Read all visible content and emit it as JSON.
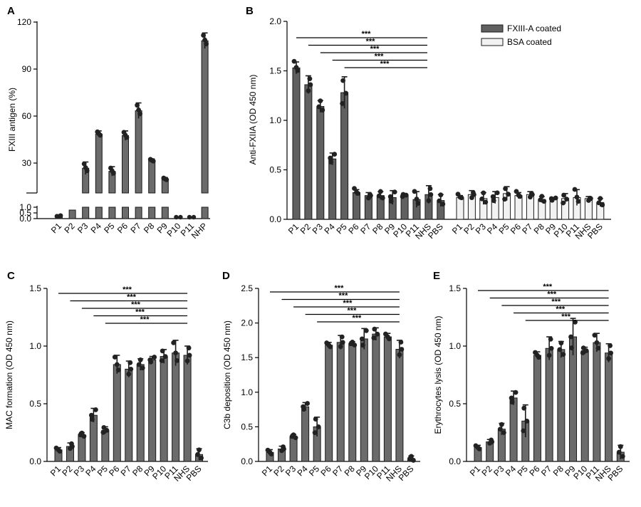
{
  "colors": {
    "fxiii": "#606060",
    "bsa": "#f2f2f2",
    "bar": "#6b6b6b",
    "edge": "#1a1a1a",
    "dot": "#222222"
  },
  "chart_data": [
    {
      "panel": "A",
      "type": "bar",
      "ylabel": "FXIII antigen (%)",
      "ylim": [
        0,
        120
      ],
      "broken_axis": true,
      "yticks": [
        "0.0",
        "0.5",
        "1.0",
        "30",
        "60",
        "90",
        "120"
      ],
      "categories": [
        "P1",
        "P2",
        "P3",
        "P4",
        "P5",
        "P6",
        "P7",
        "P8",
        "P9",
        "P10",
        "P11",
        "NHP"
      ],
      "values": [
        0.2,
        0.75,
        26,
        48,
        24,
        47,
        63,
        31,
        19,
        0.05,
        0.1,
        108
      ],
      "errors": [
        0.2,
        0,
        4,
        2,
        3,
        3,
        5,
        1,
        1,
        0.05,
        0.1,
        5
      ]
    },
    {
      "panel": "B",
      "type": "bar",
      "ylabel": "Anti-FXIIA (OD 450 nm)",
      "ylim": [
        0,
        2.0
      ],
      "yticks": [
        "0.0",
        "0.5",
        "1.0",
        "1.5",
        "2.0"
      ],
      "legend": [
        "FXIII-A coated",
        "BSA coated"
      ],
      "legend_position": "top-right",
      "significance": "***",
      "series": [
        {
          "name": "FXIII-A coated",
          "categories": [
            "P1",
            "P2",
            "P3",
            "P4",
            "P5",
            "P6",
            "P7",
            "P8",
            "P9",
            "P10",
            "P11",
            "NHS",
            "PBS"
          ],
          "values": [
            1.53,
            1.36,
            1.14,
            0.61,
            1.28,
            0.27,
            0.24,
            0.24,
            0.22,
            0.25,
            0.2,
            0.25,
            0.19
          ],
          "errors": [
            0.06,
            0.09,
            0.06,
            0.06,
            0.16,
            0.03,
            0.03,
            0.04,
            0.07,
            0.01,
            0.08,
            0.09,
            0.06
          ]
        },
        {
          "name": "BSA coated",
          "categories": [
            "P1",
            "P2",
            "P3",
            "P4",
            "P5",
            "P6",
            "P7",
            "P8",
            "P9",
            "P10",
            "P11",
            "NHS",
            "PBS"
          ],
          "values": [
            0.22,
            0.25,
            0.21,
            0.22,
            0.26,
            0.24,
            0.25,
            0.2,
            0.2,
            0.21,
            0.22,
            0.21,
            0.17
          ],
          "errors": [
            0.02,
            0.04,
            0.06,
            0.06,
            0.07,
            0.03,
            0.03,
            0.03,
            0.02,
            0.05,
            0.08,
            0.02,
            0.04
          ]
        }
      ]
    },
    {
      "panel": "C",
      "type": "bar",
      "ylabel": "MAC formation (OD 450 nm)",
      "ylim": [
        0,
        1.5
      ],
      "yticks": [
        "0.0",
        "0.5",
        "1.0",
        "1.5"
      ],
      "significance": "***",
      "categories": [
        "P1",
        "P2",
        "P3",
        "P4",
        "P5",
        "P6",
        "P7",
        "P8",
        "P9",
        "P10",
        "P11",
        "NHS",
        "PBS"
      ],
      "values": [
        0.1,
        0.13,
        0.23,
        0.4,
        0.27,
        0.84,
        0.8,
        0.84,
        0.88,
        0.91,
        0.94,
        0.92,
        0.06
      ],
      "errors": [
        0.02,
        0.03,
        0.02,
        0.06,
        0.03,
        0.08,
        0.07,
        0.05,
        0.03,
        0.06,
        0.11,
        0.08,
        0.05
      ]
    },
    {
      "panel": "D",
      "type": "bar",
      "ylabel": "C3b deposition (OD 450 nm)",
      "ylim": [
        0,
        2.5
      ],
      "yticks": [
        "0.0",
        "0.5",
        "1.0",
        "1.5",
        "2.0",
        "2.5"
      ],
      "significance": "***",
      "categories": [
        "P1",
        "P2",
        "P3",
        "P4",
        "P5",
        "P6",
        "P7",
        "P8",
        "P9",
        "P10",
        "P11",
        "NHS",
        "PBS"
      ],
      "values": [
        0.13,
        0.18,
        0.36,
        0.79,
        0.5,
        1.68,
        1.72,
        1.7,
        1.77,
        1.84,
        1.8,
        1.62,
        0.04
      ],
      "errors": [
        0.04,
        0.04,
        0.03,
        0.06,
        0.14,
        0.04,
        0.1,
        0.03,
        0.15,
        0.09,
        0.05,
        0.13,
        0.04
      ]
    },
    {
      "panel": "E",
      "type": "bar",
      "ylabel": "Erythrocytes lysis (OD 450 nm)",
      "ylim": [
        0,
        1.5
      ],
      "yticks": [
        "0.0",
        "0.5",
        "1.0",
        "1.5"
      ],
      "significance": "***",
      "categories": [
        "P1",
        "P2",
        "P3",
        "P4",
        "P5",
        "P6",
        "P7",
        "P8",
        "P9",
        "P10",
        "P11",
        "NHS",
        "PBS"
      ],
      "values": [
        0.12,
        0.17,
        0.28,
        0.55,
        0.35,
        0.92,
        0.98,
        0.97,
        1.08,
        0.96,
        1.03,
        0.94,
        0.08
      ],
      "errors": [
        0.02,
        0.02,
        0.05,
        0.06,
        0.14,
        0.03,
        0.1,
        0.07,
        0.16,
        0.03,
        0.08,
        0.08,
        0.06
      ]
    }
  ]
}
